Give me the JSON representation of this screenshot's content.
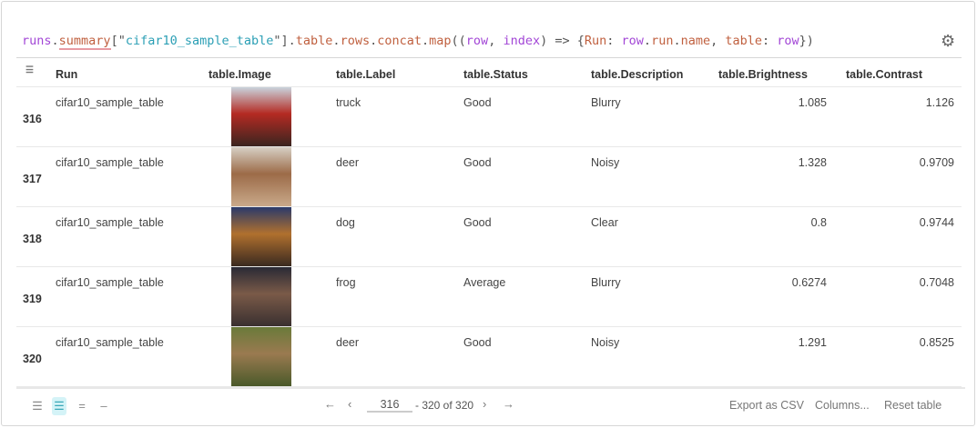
{
  "query": {
    "tokens": [
      {
        "t": "runs",
        "c": "p"
      },
      {
        "t": ".",
        "c": ""
      },
      {
        "t": "summary",
        "c": "o u"
      },
      {
        "t": "[\"",
        "c": ""
      },
      {
        "t": "cifar10_sample_table",
        "c": "s"
      },
      {
        "t": "\"].",
        "c": ""
      },
      {
        "t": "table",
        "c": "o"
      },
      {
        "t": ".",
        "c": ""
      },
      {
        "t": "rows",
        "c": "o"
      },
      {
        "t": ".",
        "c": ""
      },
      {
        "t": "concat",
        "c": "o"
      },
      {
        "t": ".",
        "c": ""
      },
      {
        "t": "map",
        "c": "o"
      },
      {
        "t": "((",
        "c": ""
      },
      {
        "t": "row",
        "c": "p"
      },
      {
        "t": ", ",
        "c": ""
      },
      {
        "t": "index",
        "c": "p"
      },
      {
        "t": ") => {",
        "c": ""
      },
      {
        "t": "Run",
        "c": "o"
      },
      {
        "t": ": ",
        "c": ""
      },
      {
        "t": "row",
        "c": "p"
      },
      {
        "t": ".",
        "c": ""
      },
      {
        "t": "run",
        "c": "o"
      },
      {
        "t": ".",
        "c": ""
      },
      {
        "t": "name",
        "c": "o"
      },
      {
        "t": ", ",
        "c": ""
      },
      {
        "t": "table",
        "c": "o"
      },
      {
        "t": ": ",
        "c": ""
      },
      {
        "t": "row",
        "c": "p"
      },
      {
        "t": "})",
        "c": ""
      }
    ]
  },
  "columns": [
    "Run",
    "table.Image",
    "table.Label",
    "table.Status",
    "table.Description",
    "table.Brightness",
    "table.Contrast"
  ],
  "rows": [
    {
      "index": "316",
      "run": "cifar10_sample_table",
      "image": "truck",
      "label": "truck",
      "status": "Good",
      "description": "Blurry",
      "brightness": "1.085",
      "contrast": "1.126",
      "colors": [
        "#c9d3dc",
        "#b42a22",
        "#3a2520"
      ]
    },
    {
      "index": "317",
      "run": "cifar10_sample_table",
      "image": "deer",
      "label": "deer",
      "status": "Good",
      "description": "Noisy",
      "brightness": "1.328",
      "contrast": "0.9709",
      "colors": [
        "#d6cfc4",
        "#9c6b48",
        "#c9a98a"
      ]
    },
    {
      "index": "318",
      "run": "cifar10_sample_table",
      "image": "dog",
      "label": "dog",
      "status": "Good",
      "description": "Clear",
      "brightness": "0.8",
      "contrast": "0.9744",
      "colors": [
        "#2a3a6a",
        "#b0702e",
        "#3a2a20"
      ]
    },
    {
      "index": "319",
      "run": "cifar10_sample_table",
      "image": "frog",
      "label": "frog",
      "status": "Average",
      "description": "Blurry",
      "brightness": "0.6274",
      "contrast": "0.7048",
      "colors": [
        "#2a2a35",
        "#7a5a48",
        "#3a3030"
      ]
    },
    {
      "index": "320",
      "run": "cifar10_sample_table",
      "image": "deer",
      "label": "deer",
      "status": "Good",
      "description": "Noisy",
      "brightness": "1.291",
      "contrast": "0.8525",
      "colors": [
        "#6a7a3a",
        "#9a7a50",
        "#4a5a2a"
      ]
    }
  ],
  "footer": {
    "page_start": "316",
    "range_text": "- 320 of 320",
    "export": "Export as CSV",
    "columns": "Columns...",
    "reset": "Reset table"
  },
  "accent": "#d4f3f7"
}
